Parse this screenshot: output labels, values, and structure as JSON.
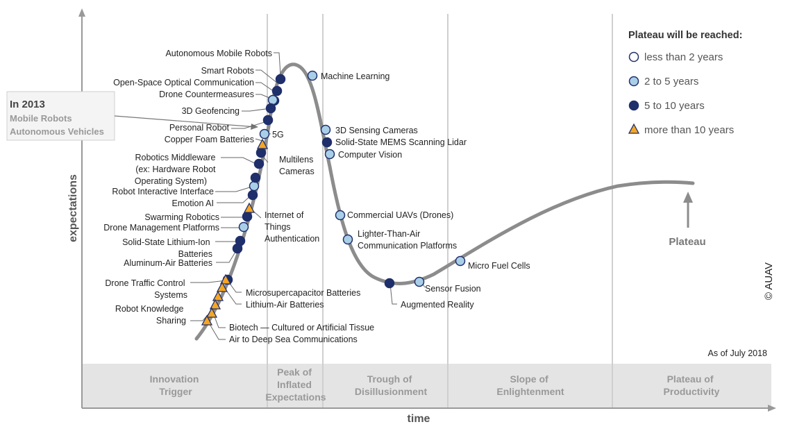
{
  "axes": {
    "y_label": "expectations",
    "x_label": "time"
  },
  "phases": [
    {
      "id": "innovation",
      "lines": [
        "Innovation",
        "Trigger"
      ]
    },
    {
      "id": "peak",
      "lines": [
        "Peak of",
        "Inflated",
        "Expectations"
      ]
    },
    {
      "id": "trough",
      "lines": [
        "Trough of",
        "Disillusionment"
      ]
    },
    {
      "id": "slope",
      "lines": [
        "Slope of",
        "Enlightenment"
      ]
    },
    {
      "id": "plateau",
      "lines": [
        "Plateau of",
        "Productivity"
      ]
    }
  ],
  "legend": {
    "title": "Plateau will be reached:",
    "items": [
      {
        "marker": "circle-white",
        "label": "less than 2 years",
        "color": "#ffffff"
      },
      {
        "marker": "circle-light-blue",
        "label": "2 to 5 years",
        "color": "#a9cfe8"
      },
      {
        "marker": "circle-navy",
        "label": "5 to 10 years",
        "color": "#1f2f6b"
      },
      {
        "marker": "triangle-orange",
        "label": "more than 10 years",
        "color": "#f5a623"
      }
    ]
  },
  "in2013": {
    "title": "In 2013",
    "items": [
      "Mobile Robots",
      "Autonomous Vehicles"
    ]
  },
  "plateau_label": "Plateau",
  "as_of": "As of July 2018",
  "copyright": "© AUAV",
  "technologies": [
    {
      "id": "autonomous-mobile-robots",
      "lines": [
        "Autonomous Mobile Robots"
      ],
      "marker": "circle-navy"
    },
    {
      "id": "smart-robots",
      "lines": [
        "Smart Robots"
      ],
      "marker": "circle-navy"
    },
    {
      "id": "open-space-optical",
      "lines": [
        "Open-Space Optical Communication"
      ],
      "marker": "circle-navy"
    },
    {
      "id": "drone-countermeasures",
      "lines": [
        "Drone Countermeasures"
      ],
      "marker": "circle-light-blue"
    },
    {
      "id": "3d-geofencing",
      "lines": [
        "3D Geofencing"
      ],
      "marker": "circle-navy"
    },
    {
      "id": "personal-robot",
      "lines": [
        "Personal Robot"
      ],
      "marker": "circle-navy"
    },
    {
      "id": "5g",
      "lines": [
        "5G"
      ],
      "marker": "circle-light-blue"
    },
    {
      "id": "copper-foam",
      "lines": [
        "Copper Foam Batteries"
      ],
      "marker": "triangle-orange"
    },
    {
      "id": "multilens-cameras",
      "lines": [
        "Multilens",
        "Cameras"
      ],
      "marker": "circle-navy"
    },
    {
      "id": "robotics-middleware",
      "lines": [
        "Robotics Middleware",
        "(ex: Hardware Robot",
        "Operating System)"
      ],
      "marker": "circle-navy"
    },
    {
      "id": "robot-interactive",
      "lines": [
        "Robot Interactive Interface"
      ],
      "marker": "circle-light-blue"
    },
    {
      "id": "emotion-ai",
      "lines": [
        "Emotion AI"
      ],
      "marker": "circle-navy"
    },
    {
      "id": "internet-things-auth",
      "lines": [
        "Internet of",
        "Things",
        "Authentication"
      ],
      "marker": "triangle-orange"
    },
    {
      "id": "swarming-robotics",
      "lines": [
        "Swarming Robotics"
      ],
      "marker": "circle-navy"
    },
    {
      "id": "drone-mgmt",
      "lines": [
        "Drone Management Platforms"
      ],
      "marker": "circle-light-blue"
    },
    {
      "id": "solid-state-li",
      "lines": [
        "Solid-State Lithium-Ion",
        "Batteries"
      ],
      "marker": "circle-navy"
    },
    {
      "id": "aluminum-air",
      "lines": [
        "Aluminum-Air Batteries"
      ],
      "marker": "circle-navy"
    },
    {
      "id": "drone-traffic",
      "lines": [
        "Drone Traffic Control",
        "Systems"
      ],
      "marker": "circle-navy"
    },
    {
      "id": "microsupercapacitor",
      "lines": [
        "Microsupercapacitor Batteries"
      ],
      "marker": "triangle-orange"
    },
    {
      "id": "lithium-air",
      "lines": [
        "Lithium-Air Batteries"
      ],
      "marker": "triangle-orange"
    },
    {
      "id": "robot-knowledge",
      "lines": [
        "Robot Knowledge",
        "Sharing"
      ],
      "marker": "triangle-orange"
    },
    {
      "id": "biotech",
      "lines": [
        "Biotech — Cultured or Artificial Tissue"
      ],
      "marker": "triangle-orange"
    },
    {
      "id": "air-deep-sea",
      "lines": [
        "Air to Deep Sea Communications"
      ],
      "marker": "triangle-orange"
    },
    {
      "id": "machine-learning",
      "lines": [
        "Machine Learning"
      ],
      "marker": "circle-light-blue"
    },
    {
      "id": "3d-sensing",
      "lines": [
        "3D Sensing Cameras"
      ],
      "marker": "circle-light-blue"
    },
    {
      "id": "mems-lidar",
      "lines": [
        "Solid-State MEMS Scanning Lidar"
      ],
      "marker": "circle-navy"
    },
    {
      "id": "computer-vision",
      "lines": [
        "Computer Vision"
      ],
      "marker": "circle-light-blue"
    },
    {
      "id": "commercial-uavs",
      "lines": [
        "Commercial UAVs (Drones)"
      ],
      "marker": "circle-light-blue"
    },
    {
      "id": "lighter-than-air",
      "lines": [
        "Lighter-Than-Air",
        "Communication Platforms"
      ],
      "marker": "circle-light-blue"
    },
    {
      "id": "augmented-reality",
      "lines": [
        "Augmented Reality"
      ],
      "marker": "circle-navy"
    },
    {
      "id": "sensor-fusion",
      "lines": [
        "Sensor Fusion"
      ],
      "marker": "circle-light-blue"
    },
    {
      "id": "micro-fuel-cells",
      "lines": [
        "Micro Fuel Cells"
      ],
      "marker": "circle-light-blue"
    }
  ]
}
